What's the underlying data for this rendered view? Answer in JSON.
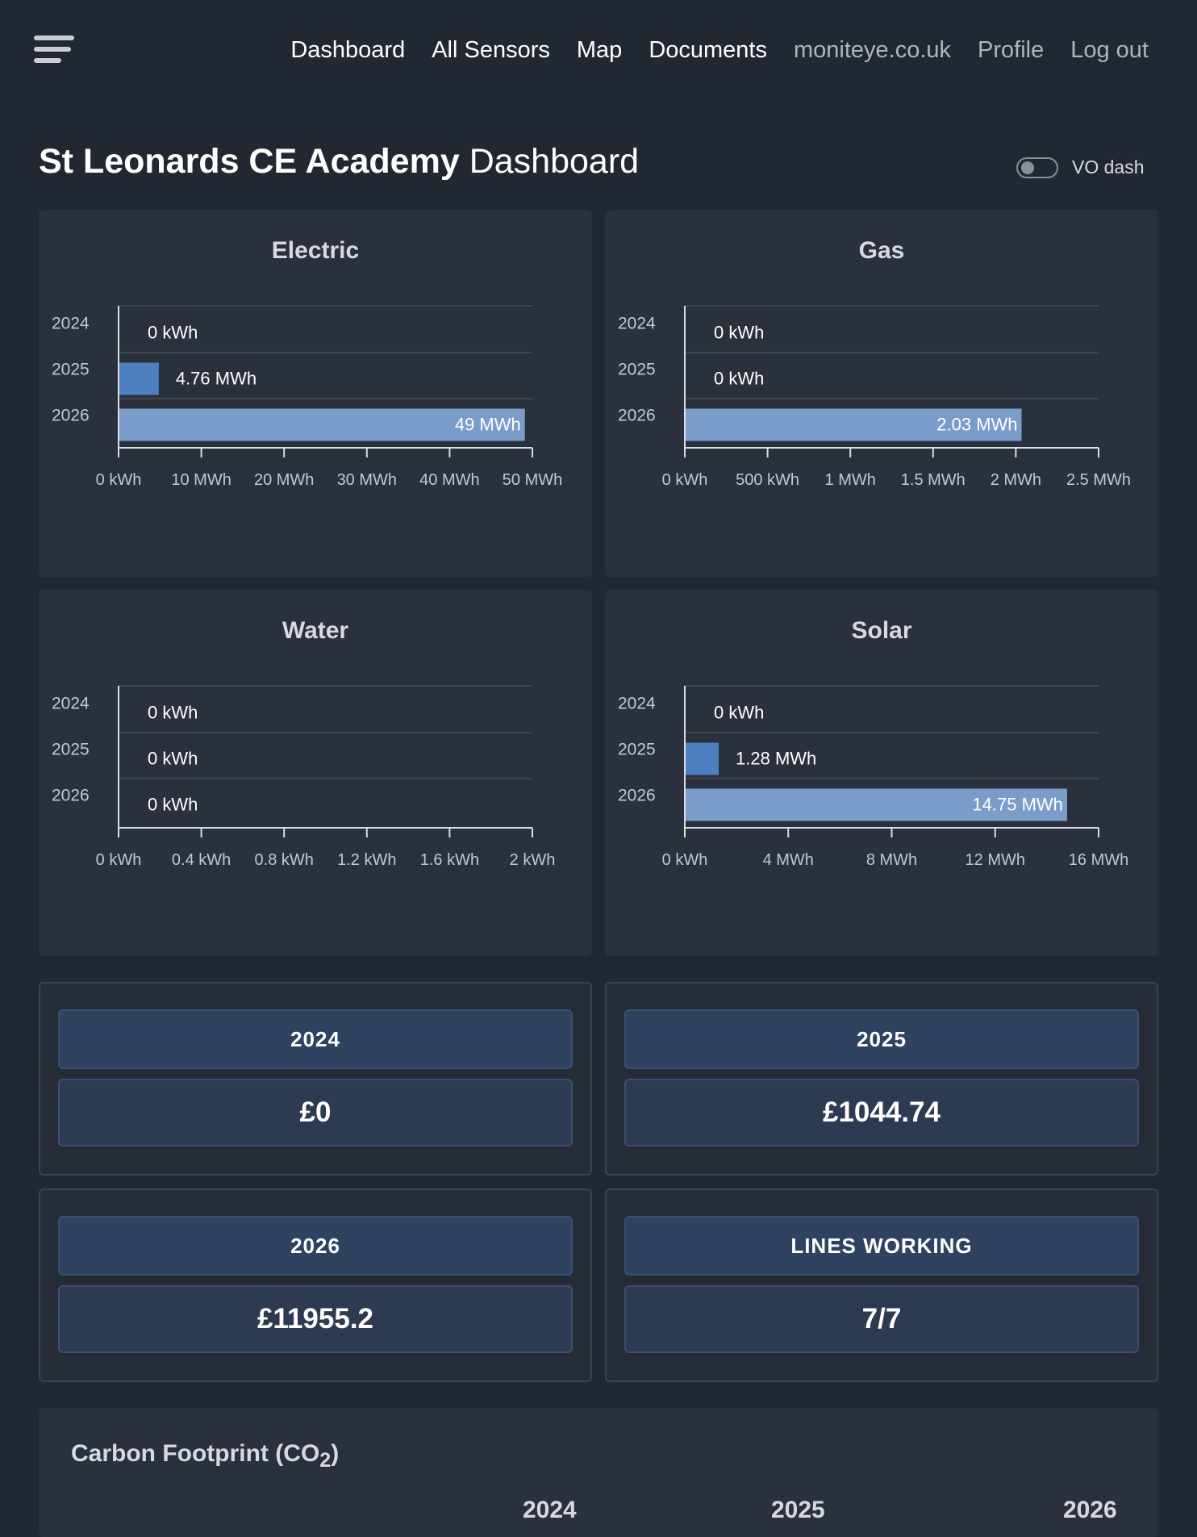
{
  "nav": {
    "menu_icon": "hamburger-menu-icon",
    "links": [
      {
        "label": "Dashboard"
      },
      {
        "label": "All Sensors"
      },
      {
        "label": "Map"
      },
      {
        "label": "Documents"
      },
      {
        "label": "moniteye.co.uk"
      },
      {
        "label": "Profile"
      },
      {
        "label": "Log out"
      }
    ]
  },
  "header": {
    "site_name": "St Leonards CE Academy",
    "title_suffix": "Dashboard",
    "toggle_label": "VO dash",
    "toggle_on": false
  },
  "colors": {
    "bar_2025": "#4e7fc0",
    "bar_2026": "#7a9ccb",
    "grid": "#3f4652",
    "axis": "#d9dde2",
    "label": "#c3c8ce"
  },
  "chart_data": [
    {
      "type": "bar",
      "orientation": "horizontal",
      "title": "Electric",
      "categories": [
        "2024",
        "2025",
        "2026"
      ],
      "values": [
        0,
        4.76,
        49
      ],
      "unit": "MWh",
      "value_labels": [
        "0 kWh",
        "4.76 MWh",
        "49 MWh"
      ],
      "xlim": [
        0,
        50
      ],
      "xticks": [
        "0 kWh",
        "10 MWh",
        "20 MWh",
        "30 MWh",
        "40 MWh",
        "50 MWh"
      ]
    },
    {
      "type": "bar",
      "orientation": "horizontal",
      "title": "Gas",
      "categories": [
        "2024",
        "2025",
        "2026"
      ],
      "values": [
        0,
        0,
        2.03
      ],
      "unit": "MWh",
      "value_labels": [
        "0 kWh",
        "0 kWh",
        "2.03 MWh"
      ],
      "xlim": [
        0,
        2.5
      ],
      "xticks": [
        "0 kWh",
        "500 kWh",
        "1 MWh",
        "1.5 MWh",
        "2 MWh",
        "2.5 MWh"
      ]
    },
    {
      "type": "bar",
      "orientation": "horizontal",
      "title": "Water",
      "categories": [
        "2024",
        "2025",
        "2026"
      ],
      "values": [
        0,
        0,
        0
      ],
      "unit": "kWh",
      "value_labels": [
        "0 kWh",
        "0 kWh",
        "0 kWh"
      ],
      "xlim": [
        0,
        2
      ],
      "xticks": [
        "0 kWh",
        "0.4 kWh",
        "0.8 kWh",
        "1.2 kWh",
        "1.6 kWh",
        "2 kWh"
      ]
    },
    {
      "type": "bar",
      "orientation": "horizontal",
      "title": "Solar",
      "categories": [
        "2024",
        "2025",
        "2026"
      ],
      "values": [
        0,
        1.28,
        14.75
      ],
      "unit": "MWh",
      "value_labels": [
        "0 kWh",
        "1.28 MWh",
        "14.75 MWh"
      ],
      "xlim": [
        0,
        16
      ],
      "xticks": [
        "0 kWh",
        "4 MWh",
        "8 MWh",
        "12 MWh",
        "16 MWh"
      ]
    }
  ],
  "stats": [
    {
      "label": "2024",
      "value": "£0"
    },
    {
      "label": "2025",
      "value": "£1044.74"
    },
    {
      "label": "2026",
      "value": "£11955.2"
    },
    {
      "label": "LINES WORKING",
      "value": "7/7"
    }
  ],
  "carbon": {
    "title_prefix": "Carbon Footprint (CO",
    "title_sub": "2",
    "title_suffix": ")",
    "years": [
      "2024",
      "2025",
      "2026"
    ]
  }
}
